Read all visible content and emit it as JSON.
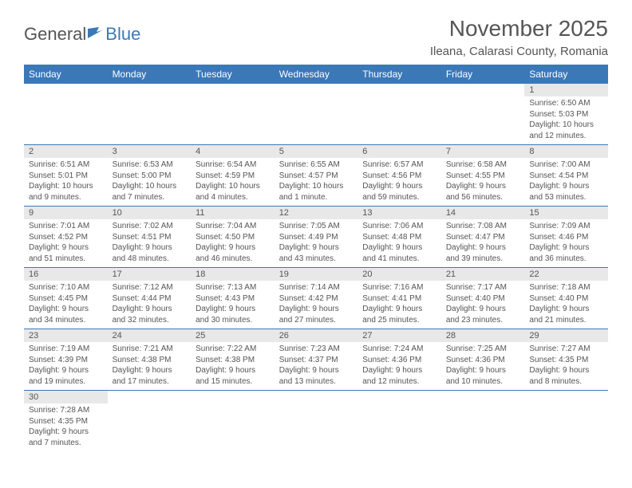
{
  "logo": {
    "general": "General",
    "blue": "Blue"
  },
  "title": "November 2025",
  "location": "Ileana, Calarasi County, Romania",
  "header_color": "#3b78b8",
  "grid_line_color": "#3b78b8",
  "daynum_bg": "#e8e8e8",
  "text_color": "#555555",
  "days": [
    "Sunday",
    "Monday",
    "Tuesday",
    "Wednesday",
    "Thursday",
    "Friday",
    "Saturday"
  ],
  "weeks": [
    [
      null,
      null,
      null,
      null,
      null,
      null,
      {
        "n": "1",
        "sr": "6:50 AM",
        "ss": "5:03 PM",
        "dl": "10 hours and 12 minutes."
      }
    ],
    [
      {
        "n": "2",
        "sr": "6:51 AM",
        "ss": "5:01 PM",
        "dl": "10 hours and 9 minutes."
      },
      {
        "n": "3",
        "sr": "6:53 AM",
        "ss": "5:00 PM",
        "dl": "10 hours and 7 minutes."
      },
      {
        "n": "4",
        "sr": "6:54 AM",
        "ss": "4:59 PM",
        "dl": "10 hours and 4 minutes."
      },
      {
        "n": "5",
        "sr": "6:55 AM",
        "ss": "4:57 PM",
        "dl": "10 hours and 1 minute."
      },
      {
        "n": "6",
        "sr": "6:57 AM",
        "ss": "4:56 PM",
        "dl": "9 hours and 59 minutes."
      },
      {
        "n": "7",
        "sr": "6:58 AM",
        "ss": "4:55 PM",
        "dl": "9 hours and 56 minutes."
      },
      {
        "n": "8",
        "sr": "7:00 AM",
        "ss": "4:54 PM",
        "dl": "9 hours and 53 minutes."
      }
    ],
    [
      {
        "n": "9",
        "sr": "7:01 AM",
        "ss": "4:52 PM",
        "dl": "9 hours and 51 minutes."
      },
      {
        "n": "10",
        "sr": "7:02 AM",
        "ss": "4:51 PM",
        "dl": "9 hours and 48 minutes."
      },
      {
        "n": "11",
        "sr": "7:04 AM",
        "ss": "4:50 PM",
        "dl": "9 hours and 46 minutes."
      },
      {
        "n": "12",
        "sr": "7:05 AM",
        "ss": "4:49 PM",
        "dl": "9 hours and 43 minutes."
      },
      {
        "n": "13",
        "sr": "7:06 AM",
        "ss": "4:48 PM",
        "dl": "9 hours and 41 minutes."
      },
      {
        "n": "14",
        "sr": "7:08 AM",
        "ss": "4:47 PM",
        "dl": "9 hours and 39 minutes."
      },
      {
        "n": "15",
        "sr": "7:09 AM",
        "ss": "4:46 PM",
        "dl": "9 hours and 36 minutes."
      }
    ],
    [
      {
        "n": "16",
        "sr": "7:10 AM",
        "ss": "4:45 PM",
        "dl": "9 hours and 34 minutes."
      },
      {
        "n": "17",
        "sr": "7:12 AM",
        "ss": "4:44 PM",
        "dl": "9 hours and 32 minutes."
      },
      {
        "n": "18",
        "sr": "7:13 AM",
        "ss": "4:43 PM",
        "dl": "9 hours and 30 minutes."
      },
      {
        "n": "19",
        "sr": "7:14 AM",
        "ss": "4:42 PM",
        "dl": "9 hours and 27 minutes."
      },
      {
        "n": "20",
        "sr": "7:16 AM",
        "ss": "4:41 PM",
        "dl": "9 hours and 25 minutes."
      },
      {
        "n": "21",
        "sr": "7:17 AM",
        "ss": "4:40 PM",
        "dl": "9 hours and 23 minutes."
      },
      {
        "n": "22",
        "sr": "7:18 AM",
        "ss": "4:40 PM",
        "dl": "9 hours and 21 minutes."
      }
    ],
    [
      {
        "n": "23",
        "sr": "7:19 AM",
        "ss": "4:39 PM",
        "dl": "9 hours and 19 minutes."
      },
      {
        "n": "24",
        "sr": "7:21 AM",
        "ss": "4:38 PM",
        "dl": "9 hours and 17 minutes."
      },
      {
        "n": "25",
        "sr": "7:22 AM",
        "ss": "4:38 PM",
        "dl": "9 hours and 15 minutes."
      },
      {
        "n": "26",
        "sr": "7:23 AM",
        "ss": "4:37 PM",
        "dl": "9 hours and 13 minutes."
      },
      {
        "n": "27",
        "sr": "7:24 AM",
        "ss": "4:36 PM",
        "dl": "9 hours and 12 minutes."
      },
      {
        "n": "28",
        "sr": "7:25 AM",
        "ss": "4:36 PM",
        "dl": "9 hours and 10 minutes."
      },
      {
        "n": "29",
        "sr": "7:27 AM",
        "ss": "4:35 PM",
        "dl": "9 hours and 8 minutes."
      }
    ],
    [
      {
        "n": "30",
        "sr": "7:28 AM",
        "ss": "4:35 PM",
        "dl": "9 hours and 7 minutes."
      },
      null,
      null,
      null,
      null,
      null,
      null
    ]
  ],
  "labels": {
    "sunrise": "Sunrise:",
    "sunset": "Sunset:",
    "daylight": "Daylight:"
  }
}
